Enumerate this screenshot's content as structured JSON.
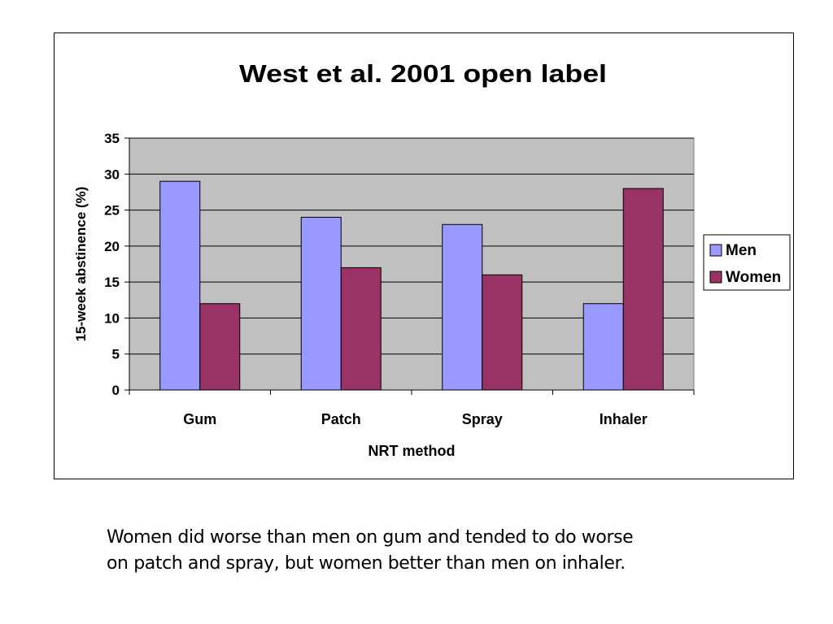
{
  "chart_data": {
    "type": "bar",
    "title": "West et al. 2001 open label",
    "xlabel": "NRT method",
    "ylabel": "15-week abstinence (%)",
    "categories": [
      "Gum",
      "Patch",
      "Spray",
      "Inhaler"
    ],
    "series": [
      {
        "name": "Men",
        "values": [
          29,
          24,
          23,
          12
        ],
        "color": "#9999ff"
      },
      {
        "name": "Women",
        "values": [
          12,
          17,
          16,
          28
        ],
        "color": "#993366"
      }
    ],
    "ylim": [
      0,
      35
    ],
    "yticks": [
      0,
      5,
      10,
      15,
      20,
      25,
      30,
      35
    ],
    "grid": true,
    "plot_background": "#c0c0c0",
    "legend_position": "right"
  },
  "caption": {
    "line1": "Women did worse than men on gum and tended to do worse",
    "line2": "on patch and spray, but women better than men on inhaler."
  }
}
